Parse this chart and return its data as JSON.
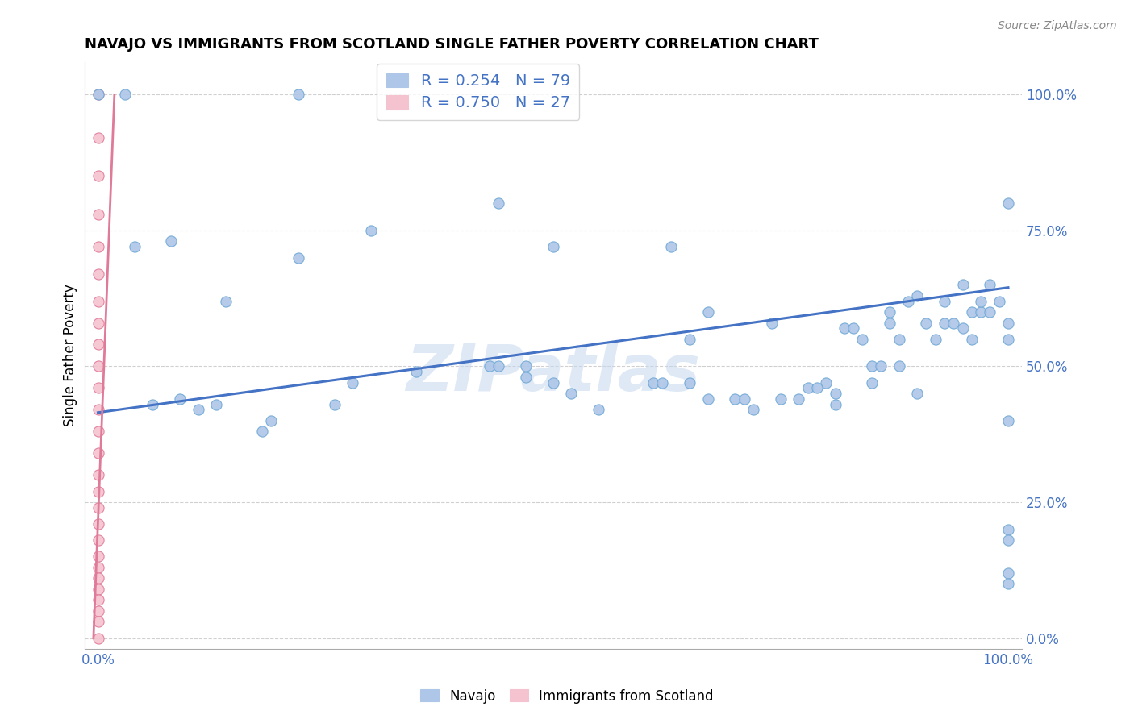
{
  "title": "NAVAJO VS IMMIGRANTS FROM SCOTLAND SINGLE FATHER POVERTY CORRELATION CHART",
  "source": "Source: ZipAtlas.com",
  "ylabel": "Single Father Poverty",
  "ytick_labels": [
    "100.0%",
    "75.0%",
    "50.0%",
    "25.0%",
    "0.0%"
  ],
  "ytick_values": [
    1.0,
    0.75,
    0.5,
    0.25,
    0.0
  ],
  "xtick_labels": [
    "0.0%",
    "100.0%"
  ],
  "xtick_values": [
    0.0,
    1.0
  ],
  "navajo_R": 0.254,
  "navajo_N": 79,
  "scotland_R": 0.75,
  "scotland_N": 27,
  "watermark": "ZIPatlas",
  "navajo_color": "#aec6e8",
  "navajo_edge_color": "#6fa8d6",
  "scotland_color": "#f5c2cf",
  "scotland_edge_color": "#e07a99",
  "trendline_navajo_color": "#4472c4",
  "trendline_scotland_color": "#e07a99",
  "legend_text_color": "#4472c4",
  "axis_tick_color": "#4472c4",
  "grid_color": "#d0d0d0",
  "background_color": "#ffffff",
  "navajo_x": [
    0.0,
    0.03,
    0.22,
    0.04,
    0.06,
    0.08,
    0.09,
    0.11,
    0.13,
    0.14,
    0.18,
    0.19,
    0.22,
    0.26,
    0.28,
    0.3,
    0.35,
    0.43,
    0.44,
    0.47,
    0.47,
    0.5,
    0.52,
    0.55,
    0.44,
    0.5,
    0.61,
    0.65,
    0.67,
    0.7,
    0.71,
    0.74,
    0.75,
    0.77,
    0.8,
    0.81,
    0.82,
    0.83,
    0.84,
    0.85,
    0.85,
    0.86,
    0.87,
    0.87,
    0.88,
    0.88,
    0.89,
    0.9,
    0.9,
    0.91,
    0.92,
    0.93,
    0.93,
    0.94,
    0.95,
    0.95,
    0.96,
    0.96,
    0.97,
    0.97,
    0.98,
    0.98,
    0.99,
    1.0,
    1.0,
    1.0,
    1.0,
    1.0,
    1.0,
    1.0,
    1.0,
    0.63,
    0.67,
    0.72,
    0.78,
    0.79,
    0.81,
    0.62,
    0.65
  ],
  "navajo_y": [
    1.0,
    1.0,
    1.0,
    0.72,
    0.43,
    0.73,
    0.44,
    0.42,
    0.43,
    0.62,
    0.38,
    0.4,
    0.7,
    0.43,
    0.47,
    0.75,
    0.49,
    0.5,
    0.5,
    0.5,
    0.48,
    0.47,
    0.45,
    0.42,
    0.8,
    0.72,
    0.47,
    0.55,
    0.6,
    0.44,
    0.44,
    0.58,
    0.44,
    0.44,
    0.47,
    0.45,
    0.57,
    0.57,
    0.55,
    0.5,
    0.47,
    0.5,
    0.6,
    0.58,
    0.55,
    0.5,
    0.62,
    0.45,
    0.63,
    0.58,
    0.55,
    0.58,
    0.62,
    0.58,
    0.57,
    0.65,
    0.55,
    0.6,
    0.6,
    0.62,
    0.6,
    0.65,
    0.62,
    0.58,
    0.8,
    0.55,
    0.4,
    0.2,
    0.12,
    0.1,
    0.18,
    0.72,
    0.44,
    0.42,
    0.46,
    0.46,
    0.43,
    0.47,
    0.47
  ],
  "scotland_x": [
    0.0,
    0.0,
    0.0,
    0.0,
    0.0,
    0.0,
    0.0,
    0.0,
    0.0,
    0.0,
    0.0,
    0.0,
    0.0,
    0.0,
    0.0,
    0.0,
    0.0,
    0.0,
    0.0,
    0.0,
    0.0,
    0.0,
    0.0,
    0.0,
    0.0,
    0.0,
    0.0
  ],
  "scotland_y": [
    1.0,
    0.92,
    0.85,
    0.78,
    0.72,
    0.67,
    0.62,
    0.58,
    0.54,
    0.5,
    0.46,
    0.42,
    0.38,
    0.34,
    0.3,
    0.27,
    0.24,
    0.21,
    0.18,
    0.15,
    0.13,
    0.11,
    0.09,
    0.07,
    0.05,
    0.03,
    0.0
  ],
  "trendline_navajo_x0": 0.0,
  "trendline_navajo_y0": 0.415,
  "trendline_navajo_x1": 1.0,
  "trendline_navajo_y1": 0.645,
  "trendline_scotland_x0": 0.0,
  "trendline_scotland_y0": 0.0,
  "trendline_scotland_x1": 0.0,
  "trendline_scotland_y1": 1.0
}
